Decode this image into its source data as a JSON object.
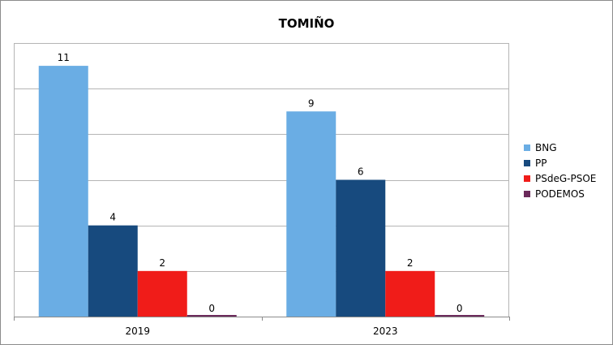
{
  "chart_data": {
    "type": "bar",
    "title": "TOMIÑO",
    "xlabel": "",
    "ylabel": "",
    "categories": [
      "2019",
      "2023"
    ],
    "series": [
      {
        "name": "BNG",
        "values": [
          11,
          9
        ],
        "color": "#6aade4"
      },
      {
        "name": "PP",
        "values": [
          4,
          6
        ],
        "color": "#174a7e"
      },
      {
        "name": "PSdeG-PSOE",
        "values": [
          2,
          2
        ],
        "color": "#f01c19"
      },
      {
        "name": "PODEMOS",
        "values": [
          0,
          0
        ],
        "color": "#6b2a5b"
      }
    ],
    "ylim": [
      0,
      12
    ],
    "grid": true,
    "legend_position": "right",
    "data_labels": true
  }
}
